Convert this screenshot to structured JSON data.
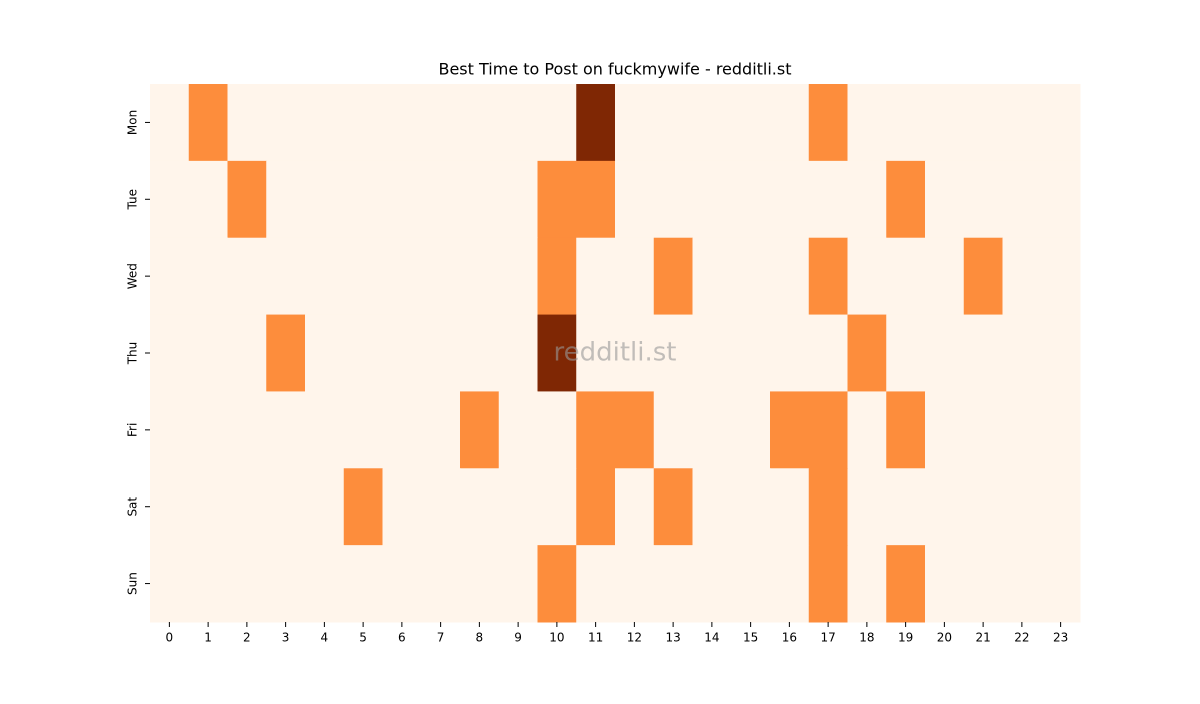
{
  "chart_data": {
    "type": "heatmap",
    "title": "Best Time to Post on fuckmywife - redditli.st",
    "watermark": "redditli.st",
    "x_categories": [
      0,
      1,
      2,
      3,
      4,
      5,
      6,
      7,
      8,
      9,
      10,
      11,
      12,
      13,
      14,
      15,
      16,
      17,
      18,
      19,
      20,
      21,
      22,
      23
    ],
    "y_categories": [
      "Mon",
      "Tue",
      "Wed",
      "Thu",
      "Fri",
      "Sat",
      "Sun"
    ],
    "values": [
      [
        0,
        1,
        0,
        0,
        0,
        0,
        0,
        0,
        0,
        0,
        0,
        2,
        0,
        0,
        0,
        0,
        0,
        1,
        0,
        0,
        0,
        0,
        0,
        0
      ],
      [
        0,
        0,
        1,
        0,
        0,
        0,
        0,
        0,
        0,
        0,
        1,
        1,
        0,
        0,
        0,
        0,
        0,
        0,
        0,
        1,
        0,
        0,
        0,
        0
      ],
      [
        0,
        0,
        0,
        0,
        0,
        0,
        0,
        0,
        0,
        0,
        1,
        0,
        0,
        1,
        0,
        0,
        0,
        1,
        0,
        0,
        0,
        1,
        0,
        0
      ],
      [
        0,
        0,
        0,
        1,
        0,
        0,
        0,
        0,
        0,
        0,
        2,
        0,
        0,
        0,
        0,
        0,
        0,
        0,
        1,
        0,
        0,
        0,
        0,
        0
      ],
      [
        0,
        0,
        0,
        0,
        0,
        0,
        0,
        0,
        1,
        0,
        0,
        1,
        1,
        0,
        0,
        0,
        1,
        1,
        0,
        1,
        0,
        0,
        0,
        0
      ],
      [
        0,
        0,
        0,
        0,
        0,
        1,
        0,
        0,
        0,
        0,
        0,
        1,
        0,
        1,
        0,
        0,
        0,
        1,
        0,
        0,
        0,
        0,
        0,
        0
      ],
      [
        0,
        0,
        0,
        0,
        0,
        0,
        0,
        0,
        0,
        0,
        1,
        0,
        0,
        0,
        0,
        0,
        0,
        1,
        0,
        1,
        0,
        0,
        0,
        0
      ]
    ],
    "colorscale": [
      "#fff5eb",
      "#fd8d3c",
      "#7f2704"
    ]
  }
}
